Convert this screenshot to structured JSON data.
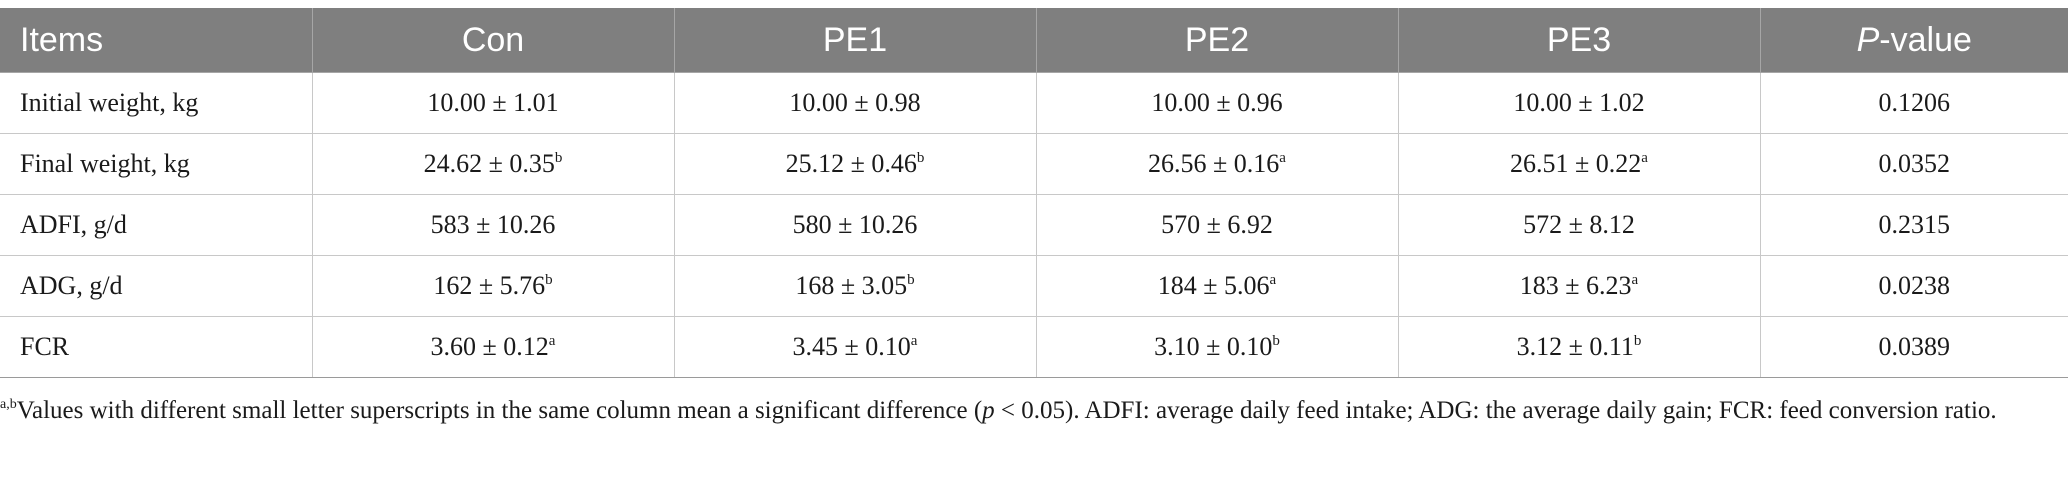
{
  "table": {
    "headers": [
      "Items",
      "Con",
      "PE1",
      "PE2",
      "PE3",
      "-value"
    ],
    "header_pvalue_italic_prefix": "P",
    "rows": [
      {
        "item": "Initial weight, kg",
        "values": [
          {
            "text": "10.00 ± 1.01",
            "sup": ""
          },
          {
            "text": "10.00 ± 0.98",
            "sup": ""
          },
          {
            "text": "10.00 ± 0.96",
            "sup": ""
          },
          {
            "text": "10.00 ± 1.02",
            "sup": ""
          }
        ],
        "pvalue": "0.1206"
      },
      {
        "item": "Final weight, kg",
        "values": [
          {
            "text": "24.62 ± 0.35",
            "sup": "b"
          },
          {
            "text": "25.12 ± 0.46",
            "sup": "b"
          },
          {
            "text": "26.56 ± 0.16",
            "sup": "a"
          },
          {
            "text": "26.51 ± 0.22",
            "sup": "a"
          }
        ],
        "pvalue": "0.0352"
      },
      {
        "item": "ADFI, g/d",
        "values": [
          {
            "text": "583 ± 10.26",
            "sup": ""
          },
          {
            "text": "580 ± 10.26",
            "sup": ""
          },
          {
            "text": "570 ± 6.92",
            "sup": ""
          },
          {
            "text": "572 ± 8.12",
            "sup": ""
          }
        ],
        "pvalue": "0.2315"
      },
      {
        "item": "ADG, g/d",
        "values": [
          {
            "text": "162 ± 5.76",
            "sup": "b"
          },
          {
            "text": "168 ± 3.05",
            "sup": "b"
          },
          {
            "text": "184 ± 5.06",
            "sup": "a"
          },
          {
            "text": "183 ± 6.23",
            "sup": "a"
          }
        ],
        "pvalue": "0.0238"
      },
      {
        "item": "FCR",
        "values": [
          {
            "text": "3.60 ± 0.12",
            "sup": "a"
          },
          {
            "text": "3.45 ± 0.10",
            "sup": "a"
          },
          {
            "text": "3.10 ± 0.10",
            "sup": "b"
          },
          {
            "text": "3.12 ± 0.11",
            "sup": "b"
          }
        ],
        "pvalue": "0.0389"
      }
    ]
  },
  "footnote": {
    "sup": "a,b",
    "text_before_p": "Values with different small letter superscripts in the same column mean a significant difference (",
    "p_symbol": "p",
    "text_after_p": " < 0.05). ADFI: average daily feed intake; ADG: the average daily gain; FCR: feed conversion ratio."
  }
}
